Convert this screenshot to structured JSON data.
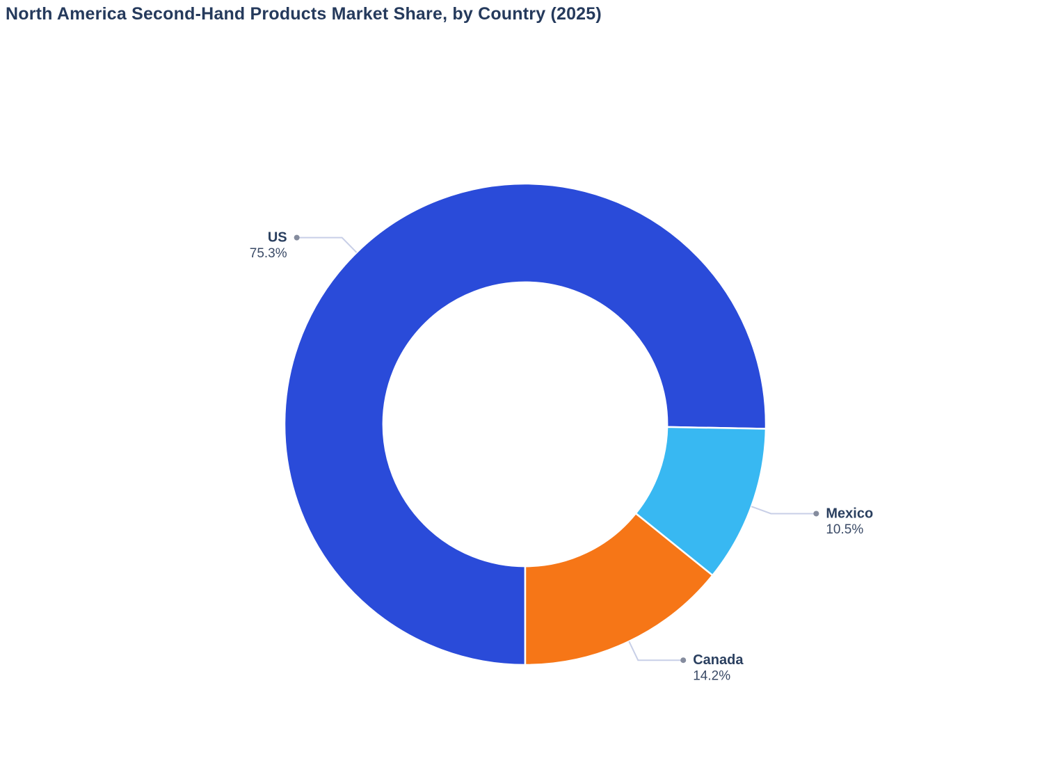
{
  "page": {
    "background": "#ffffff"
  },
  "chart_data": {
    "type": "pie",
    "subtype": "donut",
    "title": "North America Second-Hand Products Market Share, by Country (2025)",
    "categories": [
      "US",
      "Mexico",
      "Canada"
    ],
    "values": [
      75.3,
      10.5,
      14.2
    ],
    "value_labels": [
      "75.3%",
      "10.5%",
      "14.2%"
    ],
    "series_colors": [
      "#2a4bd9",
      "#38b8f2",
      "#f67617"
    ],
    "total": 100.0,
    "unit": "%",
    "hole_ratio": 0.59,
    "start_angle_deg_from_top": 180,
    "direction": "clockwise",
    "legend": "none",
    "label_layout": "outside-with-leader-lines",
    "style": {
      "title_color": "#253a5c",
      "label_name_color": "#2a3f5f",
      "label_value_color": "#3a4a66",
      "leader_line_color": "#c8cfe7",
      "leader_dot_color": "#858c9e",
      "slice_separator_color": "#ffffff"
    }
  }
}
